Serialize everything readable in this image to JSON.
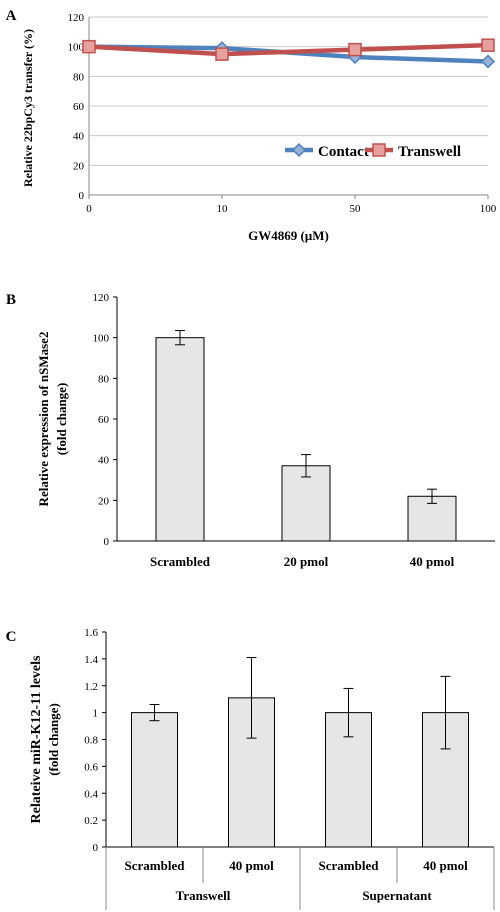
{
  "chart_data": [
    {
      "panel_label": "A",
      "type": "line",
      "categories": [
        "0",
        "10",
        "50",
        "100"
      ],
      "xlabel": "GW4869 (µM)",
      "ylabel": "Relative 22bpCy3 transfer (%)",
      "ylim": [
        0,
        120
      ],
      "yticks": [
        "0",
        "20",
        "40",
        "60",
        "80",
        "100",
        "120"
      ],
      "grid": true,
      "legend_position": "bottom-right",
      "series": [
        {
          "name": "Contact",
          "color": "#4f81bd",
          "marker": "diamond",
          "values": [
            100,
            99,
            93,
            90
          ]
        },
        {
          "name": "Transwell",
          "color": "#c0504d",
          "marker": "square",
          "values": [
            100,
            95,
            98,
            101
          ]
        }
      ]
    },
    {
      "panel_label": "B",
      "type": "bar",
      "categories": [
        "Scrambled",
        "20 pmol",
        "40 pmol"
      ],
      "values": [
        100,
        37,
        22
      ],
      "errors": [
        3.5,
        5.5,
        3.5
      ],
      "ylabel": "Relative expression of nSMase2 (fold change)",
      "ylabel_lines": [
        "Relative expression of nSMase2",
        "(fold change)"
      ],
      "ylim": [
        0,
        120
      ],
      "yticks": [
        "0",
        "20",
        "40",
        "60",
        "80",
        "100",
        "120"
      ],
      "bar_color": "#e6e6e6",
      "grid": false
    },
    {
      "panel_label": "C",
      "type": "bar",
      "categories": [
        "Scrambled",
        "40 pmol",
        "Scrambled",
        "40 pmol"
      ],
      "groups": [
        "Transwell",
        "Supernatant"
      ],
      "values": [
        1.0,
        1.11,
        1.0,
        1.0
      ],
      "errors": [
        0.06,
        0.3,
        0.18,
        0.27
      ],
      "ylabel": "Relateive miR-K12-11 levels (fold change)",
      "ylabel_lines": [
        "Relateive  miR-K12-11  levels",
        "(fold change)"
      ],
      "ylim": [
        0,
        1.6
      ],
      "yticks": [
        "0",
        "0.2",
        "0.4",
        "0.6",
        "0.8",
        "1",
        "1.2",
        "1.4",
        "1.6"
      ],
      "bar_color": "#e6e6e6",
      "grid": false
    }
  ]
}
